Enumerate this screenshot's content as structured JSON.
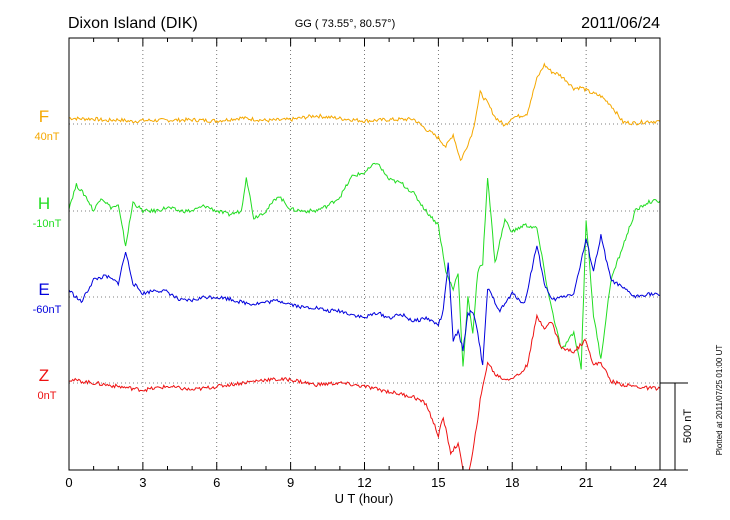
{
  "chart_data": {
    "type": "line",
    "title": "Dixon Island (DIK)",
    "coords": "GG ( 73.55°,  80.57°)",
    "date": "2011/06/24",
    "xlabel": "U T (hour)",
    "xlim": [
      0,
      24
    ],
    "xticks": [
      0,
      3,
      6,
      9,
      12,
      15,
      18,
      21,
      24
    ],
    "xtick_labels": [
      "0",
      "3",
      "6",
      "9",
      "12",
      "15",
      "18",
      "21",
      "24"
    ],
    "grid": true,
    "scale_bar_nT": 500,
    "scale_label": "500 nT",
    "plotted_note": "Plotted at 2011/07/25 01:00 UT",
    "series": [
      {
        "name": "F",
        "baseline_label": "40nT",
        "baseline_nT": 40,
        "color": "#f5a800",
        "x": [
          0,
          0.5,
          1,
          1.5,
          2,
          2.5,
          3,
          4,
          5,
          6,
          7,
          8,
          9,
          10,
          11,
          12,
          13,
          14,
          14.5,
          15,
          15.3,
          15.6,
          15.9,
          16.1,
          16.4,
          16.7,
          17,
          17.3,
          17.7,
          18,
          18.3,
          18.6,
          19,
          19.3,
          19.6,
          19.9,
          20.2,
          20.5,
          20.8,
          21.2,
          21.6,
          22,
          22.5,
          23,
          23.5,
          24
        ],
        "values": [
          35,
          30,
          30,
          20,
          25,
          15,
          20,
          22,
          24,
          18,
          35,
          20,
          25,
          48,
          32,
          18,
          25,
          28,
          -30,
          -80,
          -130,
          -60,
          -210,
          -150,
          -40,
          180,
          120,
          40,
          -10,
          40,
          45,
          60,
          260,
          340,
          300,
          285,
          250,
          205,
          210,
          180,
          160,
          110,
          10,
          5,
          15,
          15
        ]
      },
      {
        "name": "H",
        "baseline_label": "-10nT",
        "baseline_nT": -10,
        "color": "#22dd22",
        "x": [
          0,
          0.3,
          0.7,
          1,
          1.3,
          1.7,
          2,
          2.3,
          2.6,
          3,
          3.5,
          4,
          4.5,
          5,
          5.5,
          6,
          6.5,
          7,
          7.2,
          7.5,
          8,
          8.5,
          9,
          9.5,
          10,
          10.5,
          11,
          11.5,
          12,
          12.5,
          13,
          13.5,
          14,
          14.5,
          15,
          15.3,
          15.6,
          15.8,
          16,
          16.2,
          16.4,
          16.6,
          16.8,
          17,
          17.3,
          17.7,
          18,
          18.5,
          19,
          19.5,
          20,
          20.5,
          20.8,
          21,
          21.3,
          21.6,
          22,
          22.5,
          23,
          23.5,
          24
        ],
        "values": [
          20,
          150,
          80,
          0,
          80,
          20,
          30,
          -200,
          50,
          0,
          0,
          20,
          0,
          0,
          30,
          0,
          -20,
          0,
          200,
          -40,
          0,
          90,
          10,
          0,
          0,
          30,
          80,
          200,
          220,
          280,
          180,
          160,
          100,
          0,
          -80,
          -350,
          -450,
          -350,
          -900,
          -500,
          -700,
          -350,
          -300,
          200,
          -300,
          -50,
          -120,
          -80,
          -100,
          -500,
          -800,
          -700,
          -900,
          -50,
          -600,
          -850,
          -400,
          -200,
          0,
          50,
          60
        ]
      },
      {
        "name": "E",
        "baseline_label": "-60nT",
        "baseline_nT": -60,
        "color": "#0000dd",
        "x": [
          0,
          0.5,
          1,
          1.5,
          2,
          2.3,
          2.6,
          3,
          3.5,
          4,
          4.5,
          5,
          5.5,
          6,
          6.5,
          7,
          7.5,
          8,
          8.5,
          9,
          9.5,
          10,
          10.5,
          11,
          11.5,
          12,
          12.5,
          13,
          13.5,
          14,
          14.5,
          15,
          15.2,
          15.4,
          15.6,
          15.8,
          16,
          16.2,
          16.4,
          16.6,
          16.8,
          17,
          17.5,
          18,
          18.5,
          19,
          19.3,
          19.6,
          20,
          20.5,
          21,
          21.3,
          21.6,
          22,
          22.5,
          23,
          23.5,
          24
        ],
        "values": [
          40,
          -30,
          100,
          120,
          80,
          260,
          80,
          20,
          40,
          30,
          -20,
          -20,
          0,
          0,
          -10,
          -30,
          -40,
          -30,
          -20,
          -40,
          -60,
          -60,
          -80,
          -80,
          -100,
          -120,
          -90,
          -120,
          -100,
          -140,
          -120,
          -160,
          -80,
          200,
          -250,
          -200,
          -300,
          -100,
          -80,
          -200,
          -400,
          50,
          -80,
          20,
          -40,
          300,
          80,
          -20,
          0,
          20,
          330,
          150,
          350,
          100,
          50,
          0,
          20,
          10
        ]
      },
      {
        "name": "Z",
        "baseline_label": "0nT",
        "baseline_nT": 0,
        "color": "#ee1111",
        "x": [
          0,
          0.5,
          1,
          2,
          3,
          4,
          5,
          6,
          7,
          8,
          9,
          10,
          11,
          12,
          13,
          14,
          14.5,
          15,
          15.2,
          15.5,
          15.8,
          16,
          16.2,
          16.4,
          16.7,
          17,
          17.3,
          17.7,
          18,
          18.3,
          18.6,
          19,
          19.3,
          19.6,
          20,
          20.5,
          21,
          21.3,
          21.6,
          22,
          22.5,
          23,
          23.5,
          24
        ],
        "values": [
          20,
          10,
          0,
          -20,
          -40,
          -20,
          -40,
          -20,
          0,
          20,
          20,
          -10,
          0,
          -20,
          -50,
          -80,
          -120,
          -300,
          -200,
          -400,
          -350,
          -500,
          -550,
          -400,
          -100,
          120,
          50,
          20,
          30,
          50,
          100,
          380,
          320,
          350,
          200,
          180,
          250,
          100,
          120,
          10,
          -10,
          -20,
          -30,
          -30
        ]
      }
    ]
  }
}
